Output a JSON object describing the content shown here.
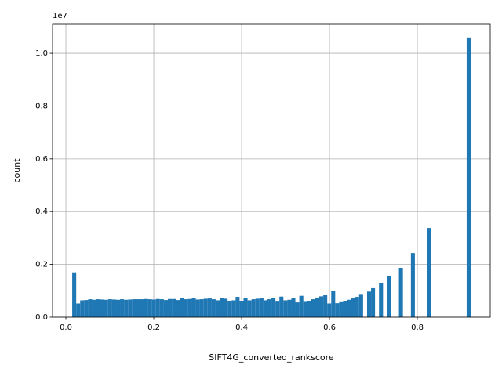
{
  "chart_data": {
    "type": "histogram",
    "xlabel": "SIFT4G_converted_rankscore",
    "ylabel": "count",
    "y_offset_text": "1e7",
    "color": "#1f77b4",
    "grid": true,
    "xlim": [
      -0.0304,
      0.966
    ],
    "ylim": [
      0,
      11100000
    ],
    "xticks": [
      {
        "value": 0,
        "label": "0.0"
      },
      0.2,
      0.4,
      0.6,
      0.8
    ],
    "yticks": [
      {
        "value": 0,
        "label": "0.0"
      },
      {
        "value": 2000000,
        "label": "0.2"
      },
      {
        "value": 4000000,
        "label": "0.4"
      },
      {
        "value": 6000000,
        "label": "0.6"
      },
      {
        "value": 8000000,
        "label": "0.8"
      },
      {
        "value": 10000000,
        "label": "1.0"
      }
    ],
    "bins": [
      0.0144,
      0.0235,
      0.0325,
      0.0416,
      0.0507,
      0.0598,
      0.0688,
      0.0779,
      0.087,
      0.096,
      0.1051,
      0.1142,
      0.1232,
      0.1323,
      0.1414,
      0.1505,
      0.1595,
      0.1686,
      0.1777,
      0.1867,
      0.1958,
      0.2049,
      0.2139,
      0.223,
      0.2321,
      0.2412,
      0.2502,
      0.2593,
      0.2684,
      0.2774,
      0.2865,
      0.2956,
      0.3046,
      0.3137,
      0.3228,
      0.3319,
      0.3409,
      0.35,
      0.3591,
      0.3681,
      0.3772,
      0.3863,
      0.3953,
      0.4044,
      0.4135,
      0.4226,
      0.4316,
      0.4407,
      0.4498,
      0.4588,
      0.4679,
      0.477,
      0.486,
      0.4951,
      0.5042,
      0.5133,
      0.5223,
      0.5314,
      0.5405,
      0.5495,
      0.5586,
      0.5677,
      0.5767,
      0.5858,
      0.5949,
      0.604,
      0.613,
      0.6221,
      0.6312,
      0.6402,
      0.6493,
      0.6584,
      0.6674,
      0.6765,
      0.6856,
      0.6947,
      0.7037,
      0.7128,
      0.7219,
      0.7309,
      0.74,
      0.7491,
      0.7581,
      0.7672,
      0.7763,
      0.7854,
      0.7944,
      0.8035,
      0.8126,
      0.8216,
      0.8307,
      0.8398,
      0.8488,
      0.8579,
      0.867,
      0.8761,
      0.8851,
      0.8942,
      0.9033,
      0.9123,
      0.9214
    ],
    "values": [
      1700000,
      520000,
      640000,
      650000,
      680000,
      660000,
      680000,
      670000,
      660000,
      680000,
      670000,
      660000,
      680000,
      660000,
      670000,
      680000,
      680000,
      680000,
      690000,
      680000,
      670000,
      690000,
      680000,
      650000,
      690000,
      690000,
      650000,
      720000,
      680000,
      690000,
      720000,
      670000,
      680000,
      700000,
      710000,
      680000,
      640000,
      740000,
      700000,
      620000,
      640000,
      770000,
      600000,
      720000,
      640000,
      680000,
      700000,
      740000,
      640000,
      680000,
      730000,
      590000,
      780000,
      640000,
      660000,
      720000,
      560000,
      810000,
      580000,
      620000,
      680000,
      740000,
      790000,
      830000,
      520000,
      980000,
      530000,
      570000,
      610000,
      660000,
      720000,
      770000,
      850000,
      0,
      970000,
      1100000,
      0,
      1300000,
      0,
      1550000,
      0,
      0,
      1870000,
      0,
      0,
      2430000,
      0,
      0,
      0,
      3380000,
      0,
      0,
      0,
      0,
      0,
      0,
      0,
      0,
      0,
      10600000
    ]
  }
}
